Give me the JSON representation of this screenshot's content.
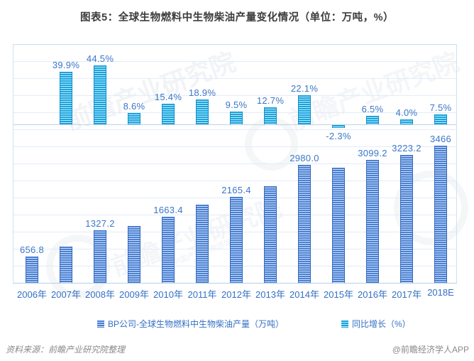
{
  "title": "图表5：全球生物燃料中生物柴油产量变化情况（单位：万吨，%）",
  "legend": [
    {
      "label": "BP公司-全球生物燃料中生物柴油产量（万吨）",
      "swatch": "production"
    },
    {
      "label": "同比增长（%）",
      "swatch": "growth"
    }
  ],
  "footer": {
    "source": "资料来源：前瞻产业研究院整理",
    "credit": "@前瞻经济学人APP"
  },
  "watermark": {
    "brand": "前瞻产业研究院",
    "sub": "中国产业咨询领导者"
  },
  "colors": {
    "production_bar": "#4a80d4",
    "production_stripe": "#cfe0f5",
    "production_edge": "#3568bc",
    "growth_bar": "#18a4de",
    "growth_stripe": "#c3eaf8",
    "growth_edge": "#0e90cc",
    "label_text": "#3b76c8",
    "tick_text": "#3470c4",
    "gridline": "#e2ecf8",
    "axis_line": "#b4cfe8",
    "title_text": "#3d3d3d"
  },
  "chart_data": {
    "type": "bar",
    "title": "图表5：全球生物燃料中生物柴油产量变化情况（单位：万吨，%）",
    "categories": [
      "2006年",
      "2007年",
      "2008年",
      "2009年",
      "2010年",
      "2011年",
      "2012年",
      "2013年",
      "2014年",
      "2015年",
      "2016年",
      "2017年",
      "2018E"
    ],
    "series": [
      {
        "name": "BP公司-全球生物燃料中生物柴油产量（万吨）",
        "axis": "primary",
        "values": [
          656.8,
          918.9,
          1327.2,
          1441.3,
          1663.4,
          1977.8,
          2165.4,
          2440.4,
          2980.0,
          2911.5,
          3099.2,
          3223.2,
          3466
        ],
        "data_labels": [
          "656.8",
          "",
          "1327.2",
          "",
          "1663.4",
          "",
          "2165.4",
          "",
          "2980.0",
          "",
          "3099.2",
          "3223.2",
          "3466"
        ]
      },
      {
        "name": "同比增长（%）",
        "axis": "secondary",
        "values": [
          null,
          39.9,
          44.5,
          8.6,
          15.4,
          18.9,
          9.5,
          12.7,
          22.1,
          -2.3,
          6.5,
          4.0,
          7.5
        ],
        "data_labels": [
          "",
          "39.9%",
          "44.5%",
          "8.6%",
          "15.4%",
          "18.9%",
          "9.5%",
          "12.7%",
          "22.1%",
          "-2.3%",
          "6.5%",
          "4.0%",
          "7.5%"
        ]
      }
    ],
    "grid": true,
    "legend_position": "bottom",
    "y_axis_tick_labels_visible": false
  }
}
